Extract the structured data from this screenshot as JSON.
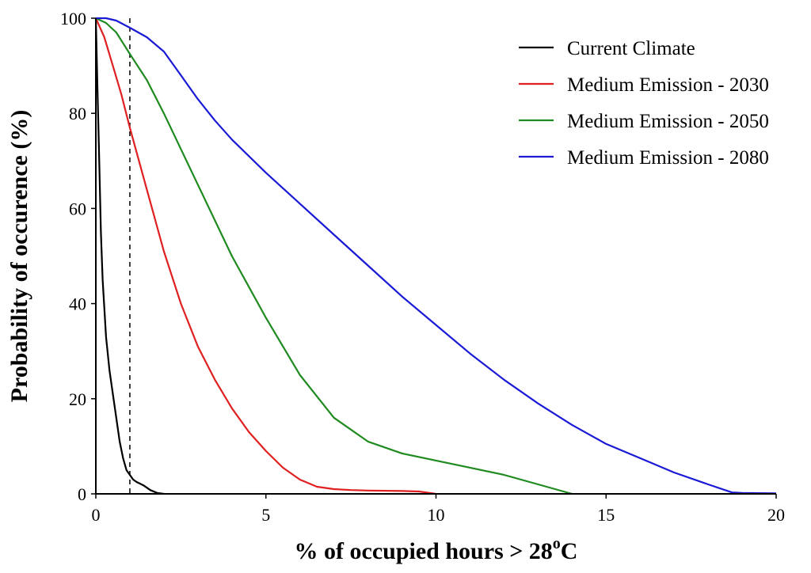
{
  "chart_data": {
    "type": "line",
    "title": "",
    "xlabel": "% of occupied hours > 28",
    "xlabel_superscript": "o",
    "xlabel_suffix": "C",
    "ylabel": "Probability of occurence (%)",
    "xlim": [
      0,
      20
    ],
    "ylim": [
      0,
      100
    ],
    "xticks": [
      0,
      5,
      10,
      15,
      20
    ],
    "yticks": [
      0,
      20,
      40,
      60,
      80,
      100
    ],
    "grid": false,
    "legend_position": "top-right",
    "threshold_line": {
      "x": 1,
      "style": "dashed",
      "color": "#000000"
    },
    "series": [
      {
        "name": "Current Climate",
        "color": "#000000",
        "x": [
          0,
          0.05,
          0.1,
          0.15,
          0.2,
          0.3,
          0.4,
          0.5,
          0.6,
          0.7,
          0.8,
          0.9,
          1.0,
          1.1,
          1.2,
          1.4,
          1.6,
          1.8,
          2.0
        ],
        "y": [
          100,
          85,
          70,
          55,
          45,
          33,
          26,
          21,
          16,
          11,
          7.5,
          5,
          4,
          3,
          2.5,
          1.8,
          0.8,
          0.2,
          0
        ]
      },
      {
        "name": "Medium Emission - 2030",
        "color": "#e02020",
        "x": [
          0,
          0.25,
          0.5,
          0.75,
          1.0,
          1.5,
          2.0,
          2.5,
          3.0,
          3.5,
          4.0,
          4.5,
          5.0,
          5.5,
          6.0,
          6.5,
          7.0,
          7.5,
          8.0,
          9.0,
          9.5,
          10.0
        ],
        "y": [
          100,
          96,
          90,
          84,
          77,
          64,
          51,
          40,
          31,
          24,
          18,
          13,
          9,
          5.5,
          3,
          1.5,
          1,
          0.8,
          0.7,
          0.6,
          0.5,
          0
        ]
      },
      {
        "name": "Medium Emission - 2050",
        "color": "#1f8a1f",
        "x": [
          0,
          0.3,
          0.6,
          1.0,
          1.5,
          2.0,
          3.0,
          4.0,
          5.0,
          6.0,
          7.0,
          8.0,
          9.0,
          10.0,
          11.0,
          12.0,
          13.0,
          14.0
        ],
        "y": [
          100,
          99,
          97,
          92.5,
          87,
          80,
          65,
          50,
          37,
          25,
          16,
          11,
          8.5,
          7,
          5.5,
          4,
          2,
          0
        ]
      },
      {
        "name": "Medium Emission - 2080",
        "color": "#1a1ad6",
        "x": [
          0,
          0.3,
          0.6,
          1.0,
          1.5,
          2.0,
          2.5,
          3.0,
          3.5,
          4.0,
          5.0,
          6.0,
          7.0,
          8.0,
          9.0,
          10.0,
          11.0,
          12.0,
          13.0,
          14.0,
          15.0,
          16.0,
          17.0,
          18.0,
          18.7,
          19.0,
          20.0
        ],
        "y": [
          100,
          100,
          99.5,
          98,
          96,
          93,
          88,
          83,
          78.5,
          74.5,
          67.5,
          61,
          54.5,
          48,
          41.5,
          35.5,
          29.5,
          24,
          19,
          14.5,
          10.5,
          7.5,
          4.5,
          2,
          0.3,
          0.2,
          0.1
        ]
      }
    ]
  }
}
